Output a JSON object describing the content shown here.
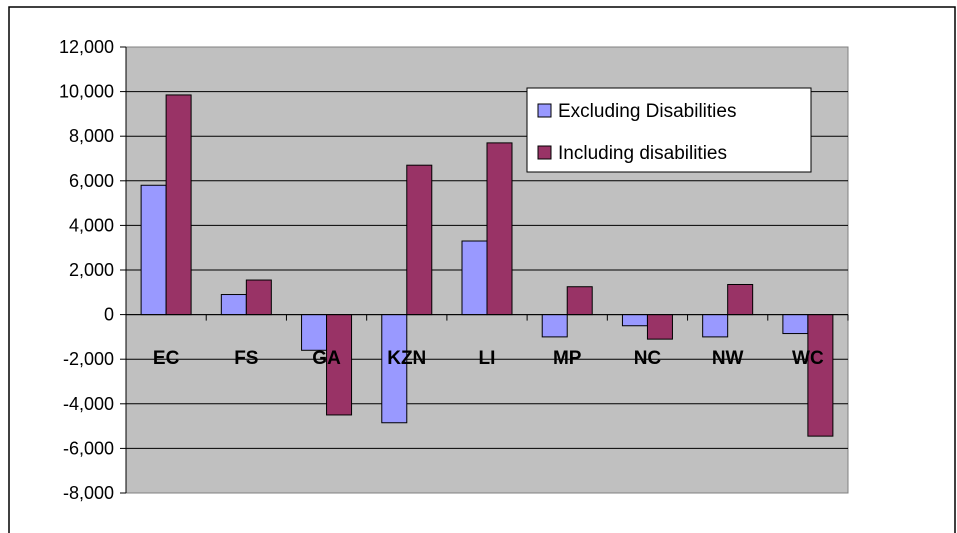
{
  "chart_data": {
    "type": "bar",
    "categories": [
      "EC",
      "FS",
      "GA",
      "KZN",
      "LI",
      "MP",
      "NC",
      "NW",
      "WC"
    ],
    "series": [
      {
        "name": "Excluding Disabilities",
        "color": "#9999ff",
        "values": [
          5800,
          900,
          -1600,
          -4850,
          3300,
          -1000,
          -500,
          -1000,
          -850
        ]
      },
      {
        "name": "Including disabilities",
        "color": "#993366",
        "values": [
          9850,
          1550,
          -4500,
          6700,
          7700,
          1250,
          -1100,
          1350,
          -5450
        ]
      }
    ],
    "ylim": [
      -8000,
      12000
    ],
    "y_ticks": [
      "12,000",
      "10,000",
      "8,000",
      "6,000",
      "4,000",
      "2,000",
      "0",
      "-2,000",
      "-4,000",
      "-6,000",
      "-8,000"
    ],
    "grid": true,
    "plot_background": "#c0c0c0",
    "legend_position": "top-right"
  }
}
